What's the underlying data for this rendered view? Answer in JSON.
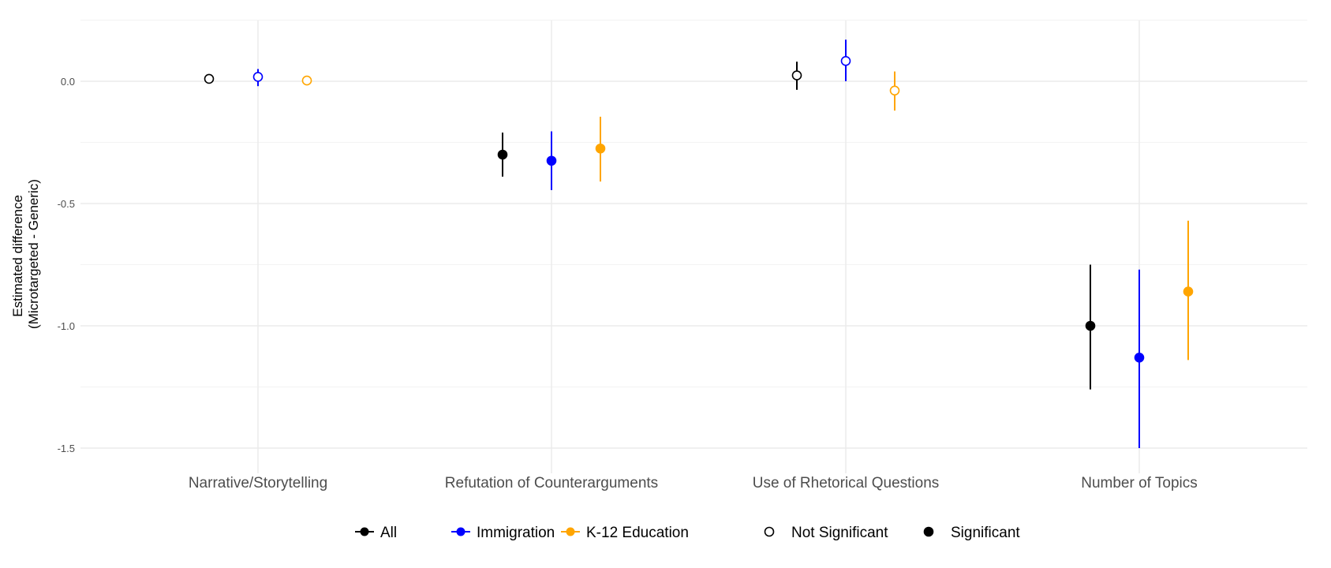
{
  "chart_data": {
    "type": "scatter",
    "subtype": "dot-and-whisker (point estimate with confidence interval)",
    "title": "",
    "xlabel": "",
    "ylabel": "Estimated difference\n(Microtargeted - Generic)",
    "ylabel_lines": [
      "Estimated difference",
      "(Microtargeted - Generic)"
    ],
    "ylim": [
      -1.6,
      0.26
    ],
    "yticks": [
      0.0,
      -0.5,
      -1.0,
      -1.5
    ],
    "ytick_labels": [
      "0.0",
      "-0.5",
      "-1.0",
      "-1.5"
    ],
    "grid": true,
    "categories": [
      "Narrative/Storytelling",
      "Refutation of Counterarguments",
      "Use of Rhetorical Questions",
      "Number of Topics"
    ],
    "series": [
      {
        "name": "All",
        "color": "#000000",
        "estimate": [
          0.01,
          -0.3,
          0.024,
          -1.0
        ],
        "ci_low": [
          0.0,
          -0.39,
          -0.035,
          -1.26
        ],
        "ci_high": [
          0.02,
          -0.21,
          0.08,
          -0.75
        ],
        "significant": [
          false,
          true,
          false,
          true
        ]
      },
      {
        "name": "Immigration",
        "color": "#0000FF",
        "estimate": [
          0.018,
          -0.325,
          0.083,
          -1.13
        ],
        "ci_low": [
          -0.02,
          -0.445,
          0.0,
          -1.5
        ],
        "ci_high": [
          0.05,
          -0.205,
          0.17,
          -0.77
        ],
        "significant": [
          false,
          true,
          false,
          true
        ]
      },
      {
        "name": "K-12 Education",
        "color": "#FFA500",
        "estimate": [
          0.003,
          -0.275,
          -0.038,
          -0.86
        ],
        "ci_low": [
          -0.005,
          -0.41,
          -0.12,
          -1.14
        ],
        "ci_high": [
          0.01,
          -0.145,
          0.04,
          -0.57
        ],
        "significant": [
          false,
          true,
          false,
          true
        ]
      }
    ],
    "legend": {
      "placement": "bottom",
      "color_entries": [
        "All",
        "Immigration",
        "K-12 Education"
      ],
      "shape_entries": [
        "Not Significant",
        "Significant"
      ]
    }
  }
}
